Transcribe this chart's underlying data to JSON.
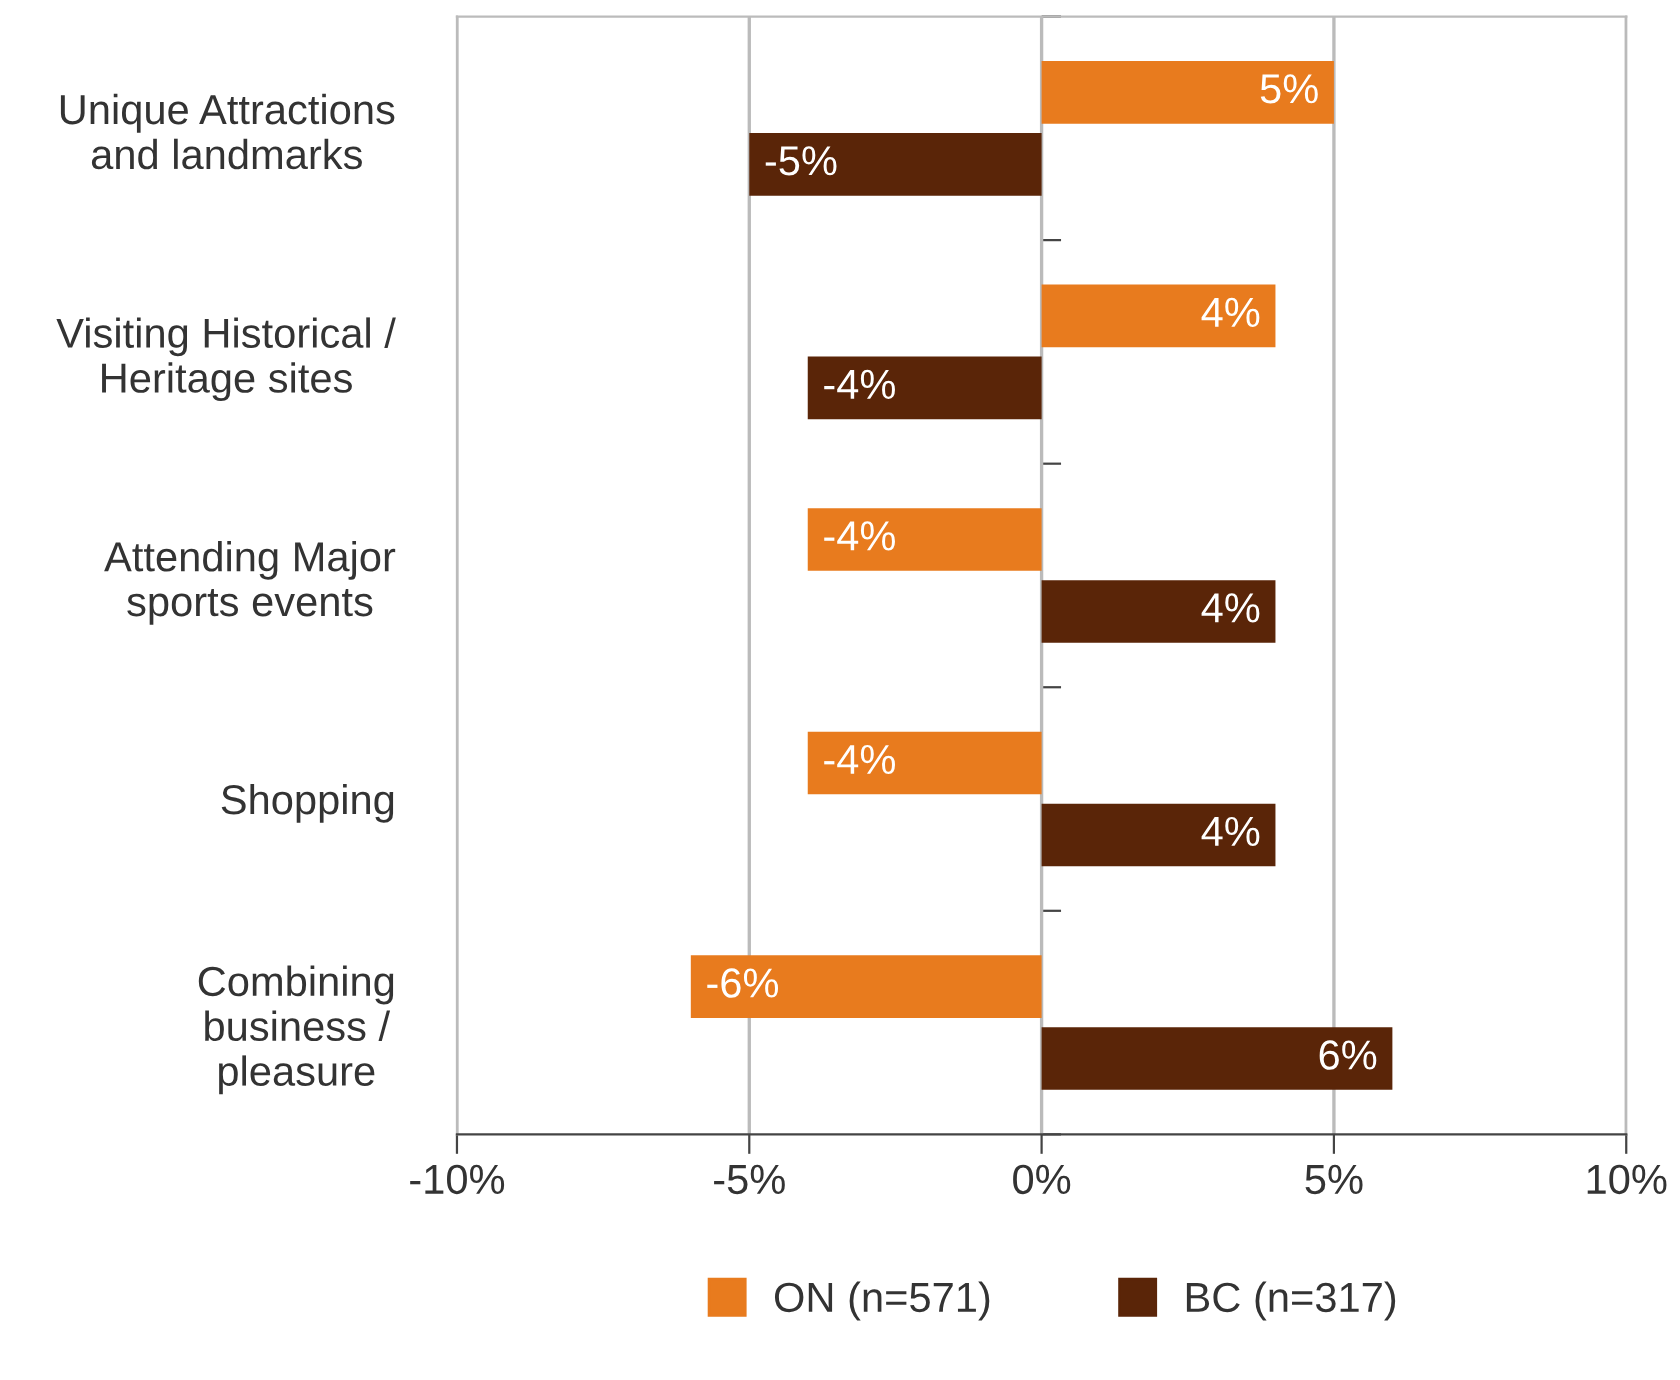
{
  "chart_data": {
    "type": "bar",
    "orientation": "horizontal",
    "categories": [
      "Unique Attractions\nand landmarks",
      "Visiting Historical /\nHeritage sites",
      "Attending Major\nsports events",
      "Shopping",
      "Combining\nbusiness /\npleasure"
    ],
    "series": [
      {
        "name": "ON (n=571)",
        "color": "#e87b1e",
        "values": [
          5,
          4,
          -4,
          -4,
          -6
        ],
        "value_labels": [
          "5%",
          "4%",
          "-4%",
          "-4%",
          "-6%"
        ]
      },
      {
        "name": "BC (n=317)",
        "color": "#5a2508",
        "values": [
          -5,
          -4,
          4,
          4,
          6
        ],
        "value_labels": [
          "-5%",
          "-4%",
          "4%",
          "4%",
          "6%"
        ]
      }
    ],
    "xlim": [
      -10,
      10
    ],
    "xticks": [
      {
        "value": -10,
        "label": "-10%"
      },
      {
        "value": -5,
        "label": "-5%"
      },
      {
        "value": 0,
        "label": "0%"
      },
      {
        "value": 5,
        "label": "5%"
      },
      {
        "value": 10,
        "label": "10%"
      }
    ],
    "grid": "x",
    "legend": "bottom"
  }
}
